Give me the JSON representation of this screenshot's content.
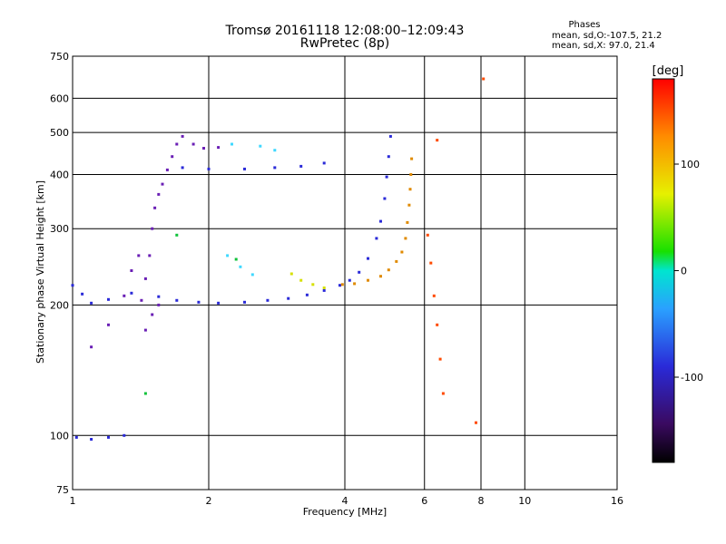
{
  "header": {
    "title_line1": "Tromsø 20161118 12:08:00–12:09:43",
    "title_line2": "RwPretec (8p)",
    "stats_title": "Phases",
    "stats_o": "mean, sd,O:-107.5, 21.2",
    "stats_x": "mean, sd,X:  97.0, 21.4"
  },
  "colorbar": {
    "unit": "[deg]",
    "ticks": [
      "100",
      "0",
      "-100"
    ],
    "tick_values": [
      100,
      0,
      -100
    ],
    "range": [
      -180,
      180
    ]
  },
  "chart_data": {
    "type": "scatter",
    "title": "Tromsø 20161118 12:08:00–12:09:43",
    "subtitle": "RwPretec (8p)",
    "xlabel": "Frequency [MHz]",
    "ylabel": "Stationary phase Virtual Height [km]",
    "xscale": "log",
    "yscale": "log",
    "xlim": [
      1,
      16
    ],
    "ylim": [
      75,
      750
    ],
    "xticks": [
      1,
      2,
      4,
      6,
      8,
      10,
      16
    ],
    "xtick_labels": [
      "1",
      "2",
      "4",
      "6",
      "8",
      "10",
      "16"
    ],
    "yticks": [
      75,
      100,
      200,
      300,
      400,
      500,
      600,
      750
    ],
    "ytick_labels": [
      "75",
      "100",
      "200",
      "300",
      "400",
      "500",
      "600",
      "750"
    ],
    "grid": true,
    "color_scale": "phase (deg), rainbow",
    "series": [
      {
        "color": "#2a2ad8",
        "points": [
          [
            1.0,
            222
          ],
          [
            1.05,
            212
          ],
          [
            1.1,
            202
          ],
          [
            1.2,
            206
          ],
          [
            1.35,
            213
          ],
          [
            1.55,
            209
          ],
          [
            1.7,
            205
          ],
          [
            1.9,
            203
          ],
          [
            2.1,
            202
          ],
          [
            2.4,
            203
          ],
          [
            2.7,
            205
          ],
          [
            3.0,
            207
          ],
          [
            3.3,
            211
          ],
          [
            3.6,
            216
          ],
          [
            3.9,
            222
          ],
          [
            4.1,
            228
          ],
          [
            4.3,
            238
          ],
          [
            4.5,
            256
          ],
          [
            4.7,
            285
          ],
          [
            4.8,
            312
          ],
          [
            4.9,
            352
          ],
          [
            4.95,
            395
          ],
          [
            5.0,
            440
          ],
          [
            5.05,
            490
          ],
          [
            1.75,
            415
          ],
          [
            2.0,
            412
          ],
          [
            2.4,
            412
          ],
          [
            2.8,
            415
          ],
          [
            3.2,
            418
          ],
          [
            3.6,
            425
          ],
          [
            1.02,
            99
          ],
          [
            1.1,
            98
          ],
          [
            1.2,
            99
          ],
          [
            1.3,
            100
          ]
        ]
      },
      {
        "color": "#6a1fb5",
        "points": [
          [
            1.42,
            205
          ],
          [
            1.45,
            230
          ],
          [
            1.48,
            260
          ],
          [
            1.5,
            300
          ],
          [
            1.52,
            335
          ],
          [
            1.55,
            360
          ],
          [
            1.58,
            380
          ],
          [
            1.62,
            410
          ],
          [
            1.66,
            440
          ],
          [
            1.7,
            470
          ],
          [
            1.45,
            175
          ],
          [
            1.5,
            190
          ],
          [
            1.55,
            200
          ],
          [
            1.75,
            490
          ],
          [
            1.85,
            470
          ],
          [
            1.95,
            460
          ],
          [
            2.1,
            462
          ],
          [
            1.1,
            160
          ],
          [
            1.2,
            180
          ],
          [
            1.3,
            210
          ],
          [
            1.35,
            240
          ],
          [
            1.4,
            260
          ]
        ]
      },
      {
        "color": "#e08a00",
        "points": [
          [
            3.95,
            223
          ],
          [
            4.2,
            224
          ],
          [
            4.5,
            228
          ],
          [
            4.8,
            233
          ],
          [
            5.0,
            241
          ],
          [
            5.2,
            252
          ],
          [
            5.35,
            265
          ],
          [
            5.45,
            285
          ],
          [
            5.5,
            310
          ],
          [
            5.55,
            340
          ],
          [
            5.58,
            370
          ],
          [
            5.6,
            400
          ],
          [
            5.62,
            435
          ]
        ]
      },
      {
        "color": "#d6e000",
        "points": [
          [
            3.05,
            236
          ],
          [
            3.2,
            228
          ],
          [
            3.4,
            223
          ],
          [
            3.6,
            219
          ]
        ]
      },
      {
        "color": "#3fd8ff",
        "points": [
          [
            2.2,
            260
          ],
          [
            2.35,
            245
          ],
          [
            2.5,
            235
          ],
          [
            2.25,
            470
          ],
          [
            2.6,
            465
          ],
          [
            2.8,
            455
          ]
        ]
      },
      {
        "color": "#ff4a00",
        "points": [
          [
            6.1,
            290
          ],
          [
            6.2,
            250
          ],
          [
            6.3,
            210
          ],
          [
            6.4,
            180
          ],
          [
            6.5,
            150
          ],
          [
            6.6,
            125
          ],
          [
            7.8,
            107
          ],
          [
            8.1,
            665
          ],
          [
            6.4,
            480
          ]
        ]
      },
      {
        "color": "#10c23a",
        "points": [
          [
            1.7,
            290
          ],
          [
            1.45,
            125
          ],
          [
            2.3,
            255
          ]
        ]
      }
    ]
  }
}
